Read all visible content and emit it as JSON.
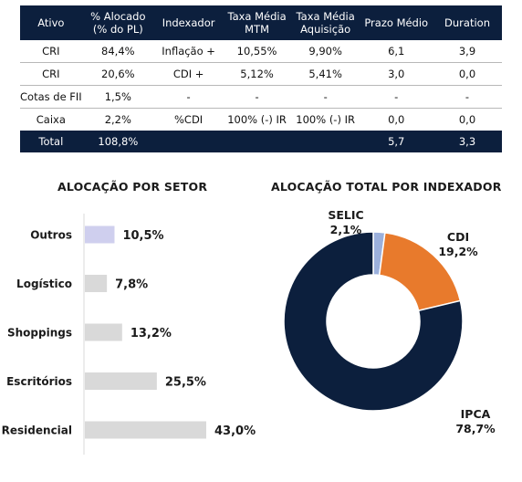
{
  "table": {
    "headers": [
      {
        "l1": "Ativo",
        "l2": ""
      },
      {
        "l1": "% Alocado",
        "l2": "(% do PL)"
      },
      {
        "l1": "Indexador",
        "l2": ""
      },
      {
        "l1": "Taxa Média",
        "l2": "MTM"
      },
      {
        "l1": "Taxa Média",
        "l2": "Aquisição"
      },
      {
        "l1": "Prazo Médio",
        "l2": ""
      },
      {
        "l1": "Duration",
        "l2": ""
      }
    ],
    "rows": [
      [
        "CRI",
        "84,4%",
        "Inflação +",
        "10,55%",
        "9,90%",
        "6,1",
        "3,9"
      ],
      [
        "CRI",
        "20,6%",
        "CDI +",
        "5,12%",
        "5,41%",
        "3,0",
        "0,0"
      ],
      [
        "Cotas de FII",
        "1,5%",
        "-",
        "-",
        "-",
        "-",
        "-"
      ],
      [
        "Caixa",
        "2,2%",
        "%CDI",
        "100% (-) IR",
        "100% (-) IR",
        "0,0",
        "0,0"
      ]
    ],
    "total": [
      "Total",
      "108,8%",
      "",
      "",
      "",
      "5,7",
      "3,3"
    ]
  },
  "chart_data": [
    {
      "type": "bar",
      "orientation": "horizontal",
      "title": "ALOCAÇÃO POR SETOR",
      "categories": [
        "Outros",
        "Logístico",
        "Shoppings",
        "Escritórios",
        "Residencial"
      ],
      "values": [
        10.5,
        7.8,
        13.2,
        25.5,
        43.0
      ],
      "labels": [
        "10,5%",
        "7,8%",
        "13,2%",
        "25,5%",
        "43,0%"
      ],
      "colors": [
        "#cfcfee",
        "#d9d9d9",
        "#d9d9d9",
        "#d9d9d9",
        "#d9d9d9"
      ],
      "unit": "%"
    },
    {
      "type": "pie",
      "style": "donut",
      "title": "ALOCAÇÃO TOTAL POR INDEXADOR",
      "slices": [
        {
          "name": "SELIC",
          "value": 2.1,
          "label": "2,1%",
          "color": "#9bb0dc"
        },
        {
          "name": "CDI",
          "value": 19.2,
          "label": "19,2%",
          "color": "#e87a2c"
        },
        {
          "name": "IPCA",
          "value": 78.7,
          "label": "78,7%",
          "color": "#0c1f3d"
        }
      ],
      "unit": "%"
    }
  ]
}
